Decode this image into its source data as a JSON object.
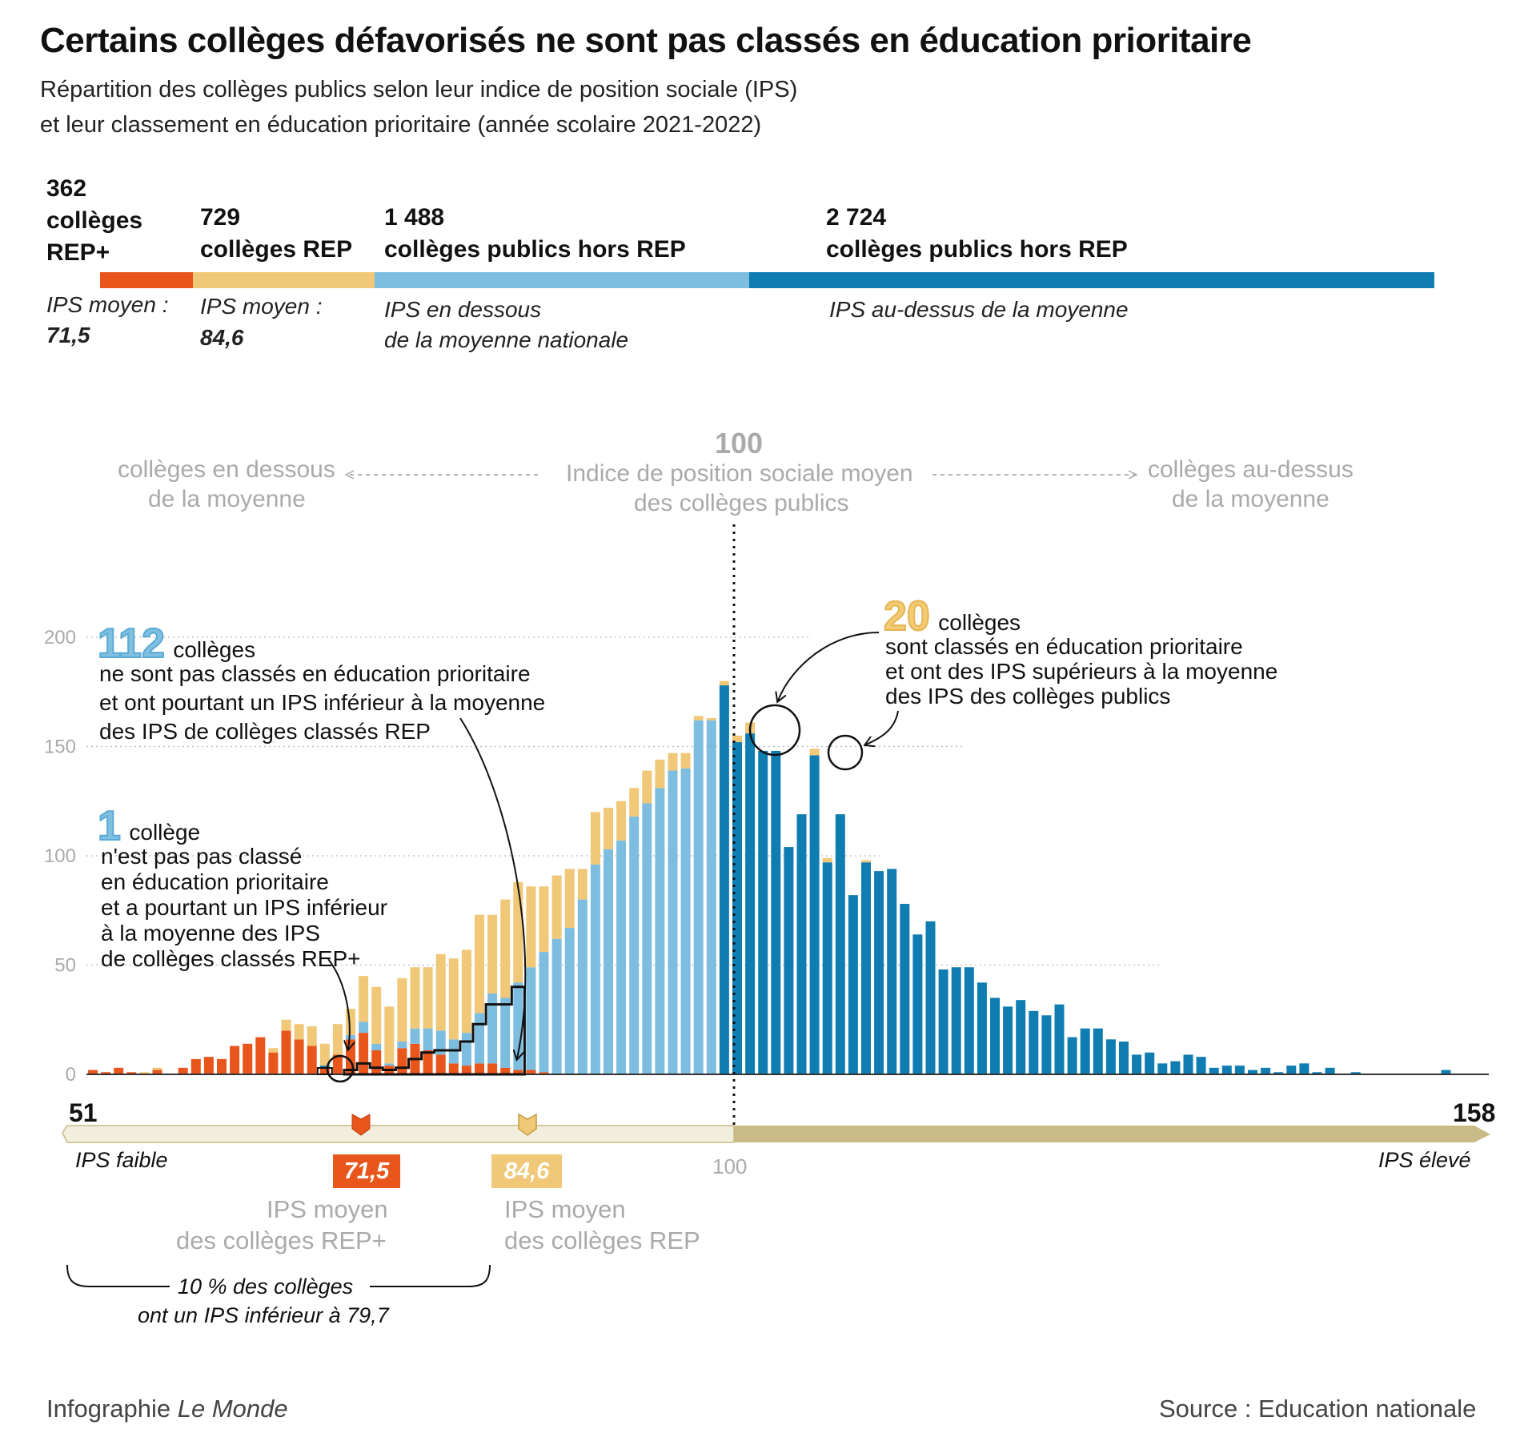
{
  "title": "Certains collèges défavorisés ne sont  pas classés en éducation prioritaire",
  "subtitle_line1": "Répartition des collèges publics selon leur indice de position sociale (IPS)",
  "subtitle_line2": "et leur classement en éducation prioritaire (année scolaire 2021-2022)",
  "segments": [
    {
      "count": "362",
      "label": "collèges REP+",
      "label_line1": "collèges",
      "label_line2": "REP+",
      "note_line1": "IPS moyen :",
      "note_line2": "71,5",
      "color": "#e8561c"
    },
    {
      "count": "729",
      "label": "collèges REP",
      "note_line1": "IPS moyen :",
      "note_line2": "84,6",
      "color": "#f0c878"
    },
    {
      "count": "1 488",
      "label": "collèges publics hors REP",
      "note_line1": "IPS en dessous",
      "note_line2": "de la moyenne nationale",
      "color": "#7dbde0"
    },
    {
      "count": "2 724",
      "label": "collèges publics hors REP",
      "note_line1": "IPS au-dessus de la moyenne",
      "color": "#0f7db1"
    }
  ],
  "mean_label": {
    "value": "100",
    "line1": "Indice de position sociale moyen",
    "line2": "des collèges publics",
    "left_line1": "collèges en dessous",
    "left_line2": "de la moyenne",
    "right_line1": "collèges au-dessus",
    "right_line2": "de la moyenne"
  },
  "annotations": {
    "a112": {
      "number": "112",
      "word": "collèges",
      "line1": "ne sont pas classés en éducation prioritaire",
      "line2": "et ont pourtant un IPS inférieur à la moyenne",
      "line3": "des IPS de collèges classés REP"
    },
    "a1": {
      "number": "1",
      "word": "collège",
      "line1": "n'est pas pas classé",
      "line2": "en éducation prioritaire",
      "line3": "et a pourtant un IPS inférieur",
      "line4": "à la moyenne des IPS",
      "line5": "de collèges classés REP+"
    },
    "a20": {
      "number": "20",
      "word": "collèges",
      "line1": "sont classés en éducation prioritaire",
      "line2": "et ont des IPS supérieurs à la moyenne",
      "line3": "des IPS des collèges publics"
    }
  },
  "axis": {
    "min_label": "51",
    "max_label": "158",
    "mid_label": "100",
    "low_label": "IPS faible",
    "high_label": "IPS élevé",
    "rep_plus_mean": "71,5",
    "rep_plus_line1": "IPS moyen",
    "rep_plus_line2": "des collèges REP+",
    "rep_mean": "84,6",
    "rep_line1": "IPS moyen",
    "rep_line2": "des collèges REP",
    "decile_line1": "10 % des collèges",
    "decile_line2": "ont un IPS inférieur à 79,7"
  },
  "footer": {
    "credit_prefix": "Infographie",
    "credit_brand": "Le Monde",
    "source": "Source : Education nationale"
  },
  "colors": {
    "rep_plus": "#e8561c",
    "rep": "#f0c878",
    "below": "#7dbde0",
    "above": "#0f7db1",
    "axis_left": "#f1eedd",
    "axis_right": "#c9ba86"
  },
  "chart_data": {
    "type": "bar",
    "stacked": true,
    "x_label_range": [
      51,
      158
    ],
    "yticks": [
      0,
      50,
      100,
      150,
      200
    ],
    "ylim": [
      0,
      210
    ],
    "mean_x": 100,
    "bar_ips_start": 52,
    "series_names": [
      "REP+",
      "REP",
      "hors REP (IPS < moyenne)",
      "hors REP (IPS > moyenne)"
    ],
    "bars": [
      {
        "ipsplus": 2,
        "rep": 0,
        "below": 0,
        "above": 0
      },
      {
        "ipsplus": 1,
        "rep": 0,
        "below": 0,
        "above": 0
      },
      {
        "ipsplus": 3,
        "rep": 0,
        "below": 0,
        "above": 0
      },
      {
        "ipsplus": 1,
        "rep": 0,
        "below": 0,
        "above": 0
      },
      {
        "ipsplus": 0,
        "rep": 1,
        "below": 0,
        "above": 0
      },
      {
        "ipsplus": 2,
        "rep": 1,
        "below": 0,
        "above": 0
      },
      {
        "ipsplus": 0,
        "rep": 0,
        "below": 0,
        "above": 0
      },
      {
        "ipsplus": 3,
        "rep": 0,
        "below": 0,
        "above": 0
      },
      {
        "ipsplus": 7,
        "rep": 0,
        "below": 0,
        "above": 0
      },
      {
        "ipsplus": 8,
        "rep": 0,
        "below": 0,
        "above": 0
      },
      {
        "ipsplus": 7,
        "rep": 0,
        "below": 0,
        "above": 0
      },
      {
        "ipsplus": 13,
        "rep": 0,
        "below": 0,
        "above": 0
      },
      {
        "ipsplus": 14,
        "rep": 0,
        "below": 0,
        "above": 0
      },
      {
        "ipsplus": 17,
        "rep": 0,
        "below": 0,
        "above": 0
      },
      {
        "ipsplus": 10,
        "rep": 2,
        "below": 0,
        "above": 0
      },
      {
        "ipsplus": 20,
        "rep": 5,
        "below": 0,
        "above": 0
      },
      {
        "ipsplus": 16,
        "rep": 7,
        "below": 0,
        "above": 0
      },
      {
        "ipsplus": 13,
        "rep": 9,
        "below": 0,
        "above": 0
      },
      {
        "ipsplus": 3,
        "rep": 10,
        "below": 0,
        "above": 1
      },
      {
        "ipsplus": 9,
        "rep": 14,
        "below": 0,
        "above": 0
      },
      {
        "ipsplus": 16,
        "rep": 12,
        "below": 2,
        "above": 0
      },
      {
        "ipsplus": 19,
        "rep": 21,
        "below": 5,
        "above": 0
      },
      {
        "ipsplus": 11,
        "rep": 26,
        "below": 3,
        "above": 0
      },
      {
        "ipsplus": 4,
        "rep": 26,
        "below": 1,
        "above": 0
      },
      {
        "ipsplus": 12,
        "rep": 29,
        "below": 3,
        "above": 0
      },
      {
        "ipsplus": 14,
        "rep": 28,
        "below": 7,
        "above": 0
      },
      {
        "ipsplus": 11,
        "rep": 28,
        "below": 10,
        "above": 0
      },
      {
        "ipsplus": 9,
        "rep": 35,
        "below": 11,
        "above": 0
      },
      {
        "ipsplus": 5,
        "rep": 37,
        "below": 11,
        "above": 0
      },
      {
        "ipsplus": 4,
        "rep": 38,
        "below": 15,
        "above": 0
      },
      {
        "ipsplus": 5,
        "rep": 45,
        "below": 23,
        "above": 0
      },
      {
        "ipsplus": 5,
        "rep": 36,
        "below": 32,
        "above": 0
      },
      {
        "ipsplus": 3,
        "rep": 45,
        "below": 32,
        "above": 0
      },
      {
        "ipsplus": 2,
        "rep": 46,
        "below": 40,
        "above": 0
      },
      {
        "ipsplus": 2,
        "rep": 37,
        "below": 47,
        "above": 0
      },
      {
        "ipsplus": 1,
        "rep": 30,
        "below": 55,
        "above": 0
      },
      {
        "ipsplus": 0,
        "rep": 29,
        "below": 62,
        "above": 0
      },
      {
        "ipsplus": 0,
        "rep": 27,
        "below": 67,
        "above": 0
      },
      {
        "ipsplus": 0,
        "rep": 14,
        "below": 80,
        "above": 0
      },
      {
        "ipsplus": 0,
        "rep": 24,
        "below": 96,
        "above": 0
      },
      {
        "ipsplus": 0,
        "rep": 19,
        "below": 103,
        "above": 0
      },
      {
        "ipsplus": 0,
        "rep": 18,
        "below": 107,
        "above": 0
      },
      {
        "ipsplus": 0,
        "rep": 13,
        "below": 118,
        "above": 0
      },
      {
        "ipsplus": 0,
        "rep": 15,
        "below": 124,
        "above": 0
      },
      {
        "ipsplus": 0,
        "rep": 13,
        "below": 131,
        "above": 0
      },
      {
        "ipsplus": 0,
        "rep": 8,
        "below": 139,
        "above": 0
      },
      {
        "ipsplus": 0,
        "rep": 7,
        "below": 140,
        "above": 0
      },
      {
        "ipsplus": 0,
        "rep": 2,
        "below": 162,
        "above": 0
      },
      {
        "ipsplus": 0,
        "rep": 1,
        "below": 162,
        "above": 0
      },
      {
        "ipsplus": 0,
        "rep": 2,
        "below": 0,
        "above": 178
      },
      {
        "ipsplus": 0,
        "rep": 3,
        "below": 0,
        "above": 152
      },
      {
        "ipsplus": 0,
        "rep": 5,
        "below": 0,
        "above": 156
      },
      {
        "ipsplus": 0,
        "rep": 0,
        "below": 0,
        "above": 148
      },
      {
        "ipsplus": 0,
        "rep": 0,
        "below": 0,
        "above": 148
      },
      {
        "ipsplus": 0,
        "rep": 0,
        "below": 0,
        "above": 104
      },
      {
        "ipsplus": 0,
        "rep": 0,
        "below": 0,
        "above": 119
      },
      {
        "ipsplus": 0,
        "rep": 3,
        "below": 0,
        "above": 146
      },
      {
        "ipsplus": 0,
        "rep": 2,
        "below": 0,
        "above": 97
      },
      {
        "ipsplus": 0,
        "rep": 0,
        "below": 0,
        "above": 119
      },
      {
        "ipsplus": 0,
        "rep": 0,
        "below": 0,
        "above": 82
      },
      {
        "ipsplus": 0,
        "rep": 1,
        "below": 0,
        "above": 97
      },
      {
        "ipsplus": 0,
        "rep": 0,
        "below": 0,
        "above": 93
      },
      {
        "ipsplus": 0,
        "rep": 0,
        "below": 0,
        "above": 94
      },
      {
        "ipsplus": 0,
        "rep": 0,
        "below": 0,
        "above": 78
      },
      {
        "ipsplus": 0,
        "rep": 0,
        "below": 0,
        "above": 64
      },
      {
        "ipsplus": 0,
        "rep": 0,
        "below": 0,
        "above": 70
      },
      {
        "ipsplus": 0,
        "rep": 0,
        "below": 0,
        "above": 48
      },
      {
        "ipsplus": 0,
        "rep": 0,
        "below": 0,
        "above": 49
      },
      {
        "ipsplus": 0,
        "rep": 0,
        "below": 0,
        "above": 49
      },
      {
        "ipsplus": 0,
        "rep": 0,
        "below": 0,
        "above": 42
      },
      {
        "ipsplus": 0,
        "rep": 0,
        "below": 0,
        "above": 35
      },
      {
        "ipsplus": 0,
        "rep": 0,
        "below": 0,
        "above": 31
      },
      {
        "ipsplus": 0,
        "rep": 0,
        "below": 0,
        "above": 34
      },
      {
        "ipsplus": 0,
        "rep": 0,
        "below": 0,
        "above": 29
      },
      {
        "ipsplus": 0,
        "rep": 0,
        "below": 0,
        "above": 27
      },
      {
        "ipsplus": 0,
        "rep": 0,
        "below": 0,
        "above": 32
      },
      {
        "ipsplus": 0,
        "rep": 0,
        "below": 0,
        "above": 17
      },
      {
        "ipsplus": 0,
        "rep": 0,
        "below": 0,
        "above": 21
      },
      {
        "ipsplus": 0,
        "rep": 0,
        "below": 0,
        "above": 21
      },
      {
        "ipsplus": 0,
        "rep": 0,
        "below": 0,
        "above": 16
      },
      {
        "ipsplus": 0,
        "rep": 0,
        "below": 0,
        "above": 15
      },
      {
        "ipsplus": 0,
        "rep": 0,
        "below": 0,
        "above": 9
      },
      {
        "ipsplus": 0,
        "rep": 0,
        "below": 0,
        "above": 10
      },
      {
        "ipsplus": 0,
        "rep": 0,
        "below": 0,
        "above": 5
      },
      {
        "ipsplus": 0,
        "rep": 0,
        "below": 0,
        "above": 6
      },
      {
        "ipsplus": 0,
        "rep": 0,
        "below": 0,
        "above": 9
      },
      {
        "ipsplus": 0,
        "rep": 0,
        "below": 0,
        "above": 8
      },
      {
        "ipsplus": 0,
        "rep": 0,
        "below": 0,
        "above": 3
      },
      {
        "ipsplus": 0,
        "rep": 0,
        "below": 0,
        "above": 4
      },
      {
        "ipsplus": 0,
        "rep": 0,
        "below": 0,
        "above": 4
      },
      {
        "ipsplus": 0,
        "rep": 0,
        "below": 0,
        "above": 2
      },
      {
        "ipsplus": 0,
        "rep": 0,
        "below": 0,
        "above": 3
      },
      {
        "ipsplus": 0,
        "rep": 0,
        "below": 0,
        "above": 1
      },
      {
        "ipsplus": 0,
        "rep": 0,
        "below": 0,
        "above": 4
      },
      {
        "ipsplus": 0,
        "rep": 0,
        "below": 0,
        "above": 5
      },
      {
        "ipsplus": 0,
        "rep": 0,
        "below": 0,
        "above": 1
      },
      {
        "ipsplus": 0,
        "rep": 0,
        "below": 0,
        "above": 3
      },
      {
        "ipsplus": 0,
        "rep": 0,
        "below": 0,
        "above": 0
      },
      {
        "ipsplus": 0,
        "rep": 0,
        "below": 0,
        "above": 1
      },
      {
        "ipsplus": 0,
        "rep": 0,
        "below": 0,
        "above": 0
      },
      {
        "ipsplus": 0,
        "rep": 0,
        "below": 0,
        "above": 0
      },
      {
        "ipsplus": 0,
        "rep": 0,
        "below": 0,
        "above": 0
      },
      {
        "ipsplus": 0,
        "rep": 0,
        "below": 0,
        "above": 0
      },
      {
        "ipsplus": 0,
        "rep": 0,
        "below": 0,
        "above": 0
      },
      {
        "ipsplus": 0,
        "rep": 0,
        "below": 0,
        "above": 0
      },
      {
        "ipsplus": 0,
        "rep": 0,
        "below": 0,
        "above": 2
      }
    ]
  }
}
